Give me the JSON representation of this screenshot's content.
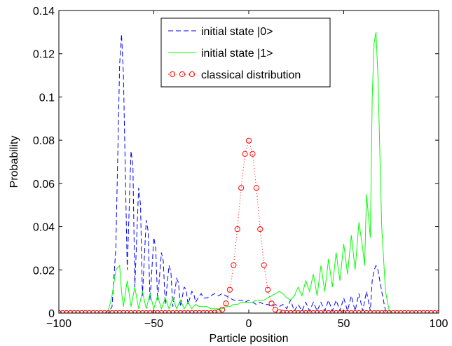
{
  "chart_data": {
    "type": "line",
    "title": "",
    "xlabel": "Particle position",
    "ylabel": "Probability",
    "xlim": [
      -100,
      100
    ],
    "ylim": [
      0,
      0.14
    ],
    "xticks": [
      -100,
      -50,
      0,
      50,
      100
    ],
    "xtick_labels": [
      "−100",
      "−50",
      "0",
      "50",
      "100"
    ],
    "yticks": [
      0,
      0.02,
      0.04,
      0.06,
      0.08,
      0.1,
      0.12,
      0.14
    ],
    "ytick_labels": [
      "0",
      "0.02",
      "0.04",
      "0.06",
      "0.08",
      "0.1",
      "0.12",
      "0.14"
    ],
    "grid": false,
    "legend_position": "top-center",
    "series": [
      {
        "name": "initial state |0>",
        "color": "#0000ff",
        "style": "dashed",
        "x": [
          -100,
          -74,
          -72,
          -70,
          -68,
          -67,
          -66,
          -64,
          -62,
          -61,
          -60,
          -58,
          -57,
          -56,
          -54,
          -53,
          -52,
          -50,
          -49,
          -48,
          -46,
          -45,
          -44,
          -42,
          -41,
          -40,
          -38,
          -37,
          -36,
          -34,
          -33,
          -32,
          -30,
          -29,
          -28,
          -26,
          -25,
          -24,
          -22,
          -20,
          -18,
          -16,
          -14,
          -12,
          -10,
          -8,
          -6,
          -4,
          -2,
          0,
          2,
          4,
          6,
          8,
          10,
          12,
          14,
          16,
          18,
          20,
          22,
          24,
          26,
          28,
          30,
          32,
          34,
          36,
          38,
          40,
          42,
          44,
          46,
          48,
          50,
          52,
          54,
          56,
          58,
          60,
          62,
          64,
          65,
          66,
          67,
          68,
          70,
          72,
          74,
          76,
          100
        ],
        "y": [
          0,
          0,
          0.003,
          0.03,
          0.115,
          0.129,
          0.11,
          0.02,
          0.075,
          0.068,
          0.012,
          0.058,
          0.05,
          0.008,
          0.043,
          0.038,
          0.006,
          0.035,
          0.03,
          0.006,
          0.028,
          0.024,
          0.004,
          0.022,
          0.019,
          0.003,
          0.016,
          0.014,
          0.003,
          0.012,
          0.011,
          0.004,
          0.01,
          0.009,
          0.005,
          0.008,
          0.009,
          0.007,
          0.007,
          0.008,
          0.009,
          0.008,
          0.009,
          0.008,
          0.007,
          0.006,
          0.006,
          0.006,
          0.005,
          0.006,
          0.005,
          0.004,
          0.005,
          0.004,
          0.004,
          0.003,
          0.004,
          0.003,
          0.004,
          0.002,
          0.006,
          0.001,
          0.004,
          0.001,
          0.005,
          0.001,
          0.005,
          0.001,
          0.005,
          0.001,
          0.006,
          0.001,
          0.006,
          0.001,
          0.007,
          0.001,
          0.008,
          0.001,
          0.009,
          0.001,
          0.01,
          0.001,
          0.015,
          0.02,
          0.022,
          0.02,
          0.01,
          0.001,
          0,
          0,
          0
        ]
      },
      {
        "name": "initial state |1>",
        "color": "#00ff00",
        "style": "solid",
        "x": [
          -100,
          -76,
          -74,
          -72,
          -70,
          -68,
          -67,
          -66,
          -64,
          -62,
          -60,
          -58,
          -56,
          -54,
          -52,
          -50,
          -48,
          -46,
          -44,
          -42,
          -40,
          -38,
          -36,
          -34,
          -32,
          -30,
          -28,
          -26,
          -24,
          -22,
          -20,
          -18,
          -16,
          -14,
          -12,
          -10,
          -8,
          -6,
          -4,
          -2,
          0,
          2,
          4,
          6,
          8,
          10,
          12,
          14,
          16,
          18,
          20,
          22,
          24,
          26,
          28,
          30,
          32,
          34,
          36,
          38,
          40,
          42,
          44,
          46,
          48,
          50,
          52,
          54,
          56,
          58,
          60,
          61,
          62,
          64,
          65,
          66,
          67,
          68,
          70,
          72,
          74,
          76,
          100
        ],
        "y": [
          0,
          0,
          0.001,
          0.008,
          0.02,
          0.022,
          0.01,
          0.003,
          0.015,
          0.003,
          0.012,
          0.002,
          0.01,
          0.002,
          0.009,
          0.002,
          0.008,
          0.002,
          0.007,
          0.002,
          0.007,
          0.002,
          0.006,
          0.002,
          0.005,
          0.002,
          0.004,
          0.003,
          0.003,
          0.003,
          0.002,
          0.002,
          0.002,
          0.002,
          0.003,
          0.003,
          0.004,
          0.004,
          0.005,
          0.005,
          0.005,
          0.005,
          0.006,
          0.006,
          0.006,
          0.007,
          0.008,
          0.009,
          0.01,
          0.009,
          0.007,
          0.006,
          0.008,
          0.012,
          0.008,
          0.015,
          0.01,
          0.018,
          0.008,
          0.022,
          0.01,
          0.025,
          0.012,
          0.028,
          0.015,
          0.032,
          0.018,
          0.036,
          0.02,
          0.042,
          0.03,
          0.022,
          0.055,
          0.035,
          0.1,
          0.125,
          0.13,
          0.11,
          0.04,
          0.01,
          0.001,
          0,
          0
        ]
      },
      {
        "name": "classical distribution",
        "color": "#ff0000",
        "style": "dotted-circle-markers",
        "gaussian": {
          "mean": 0,
          "sigma": 5
        },
        "x_start": -100,
        "x_end": 100,
        "x_step": 2
      }
    ]
  }
}
